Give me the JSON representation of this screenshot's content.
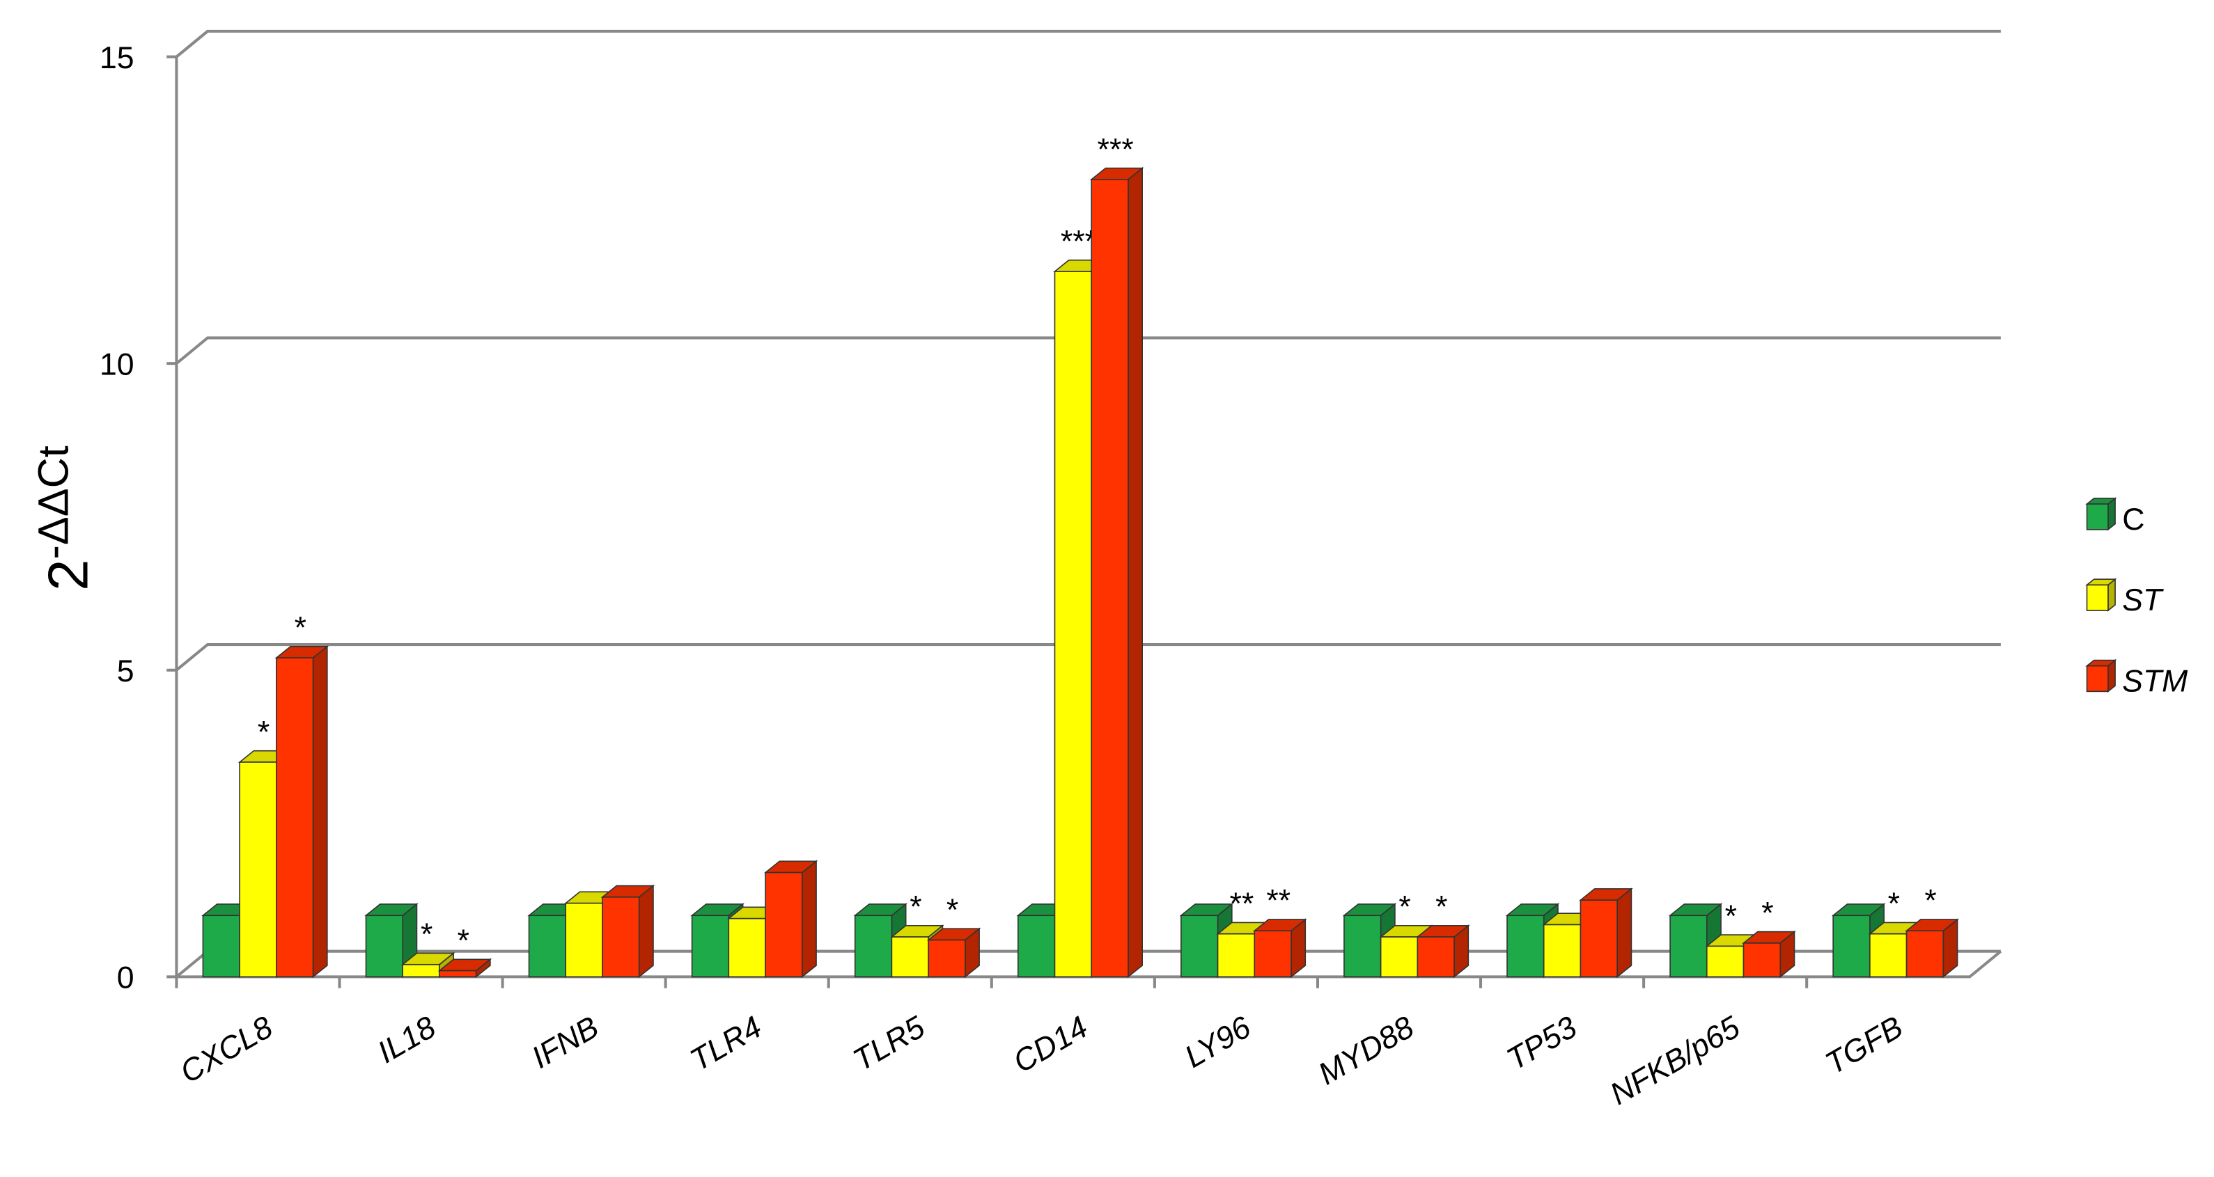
{
  "chart_data": {
    "type": "bar3d",
    "y_label": "2",
    "y_label_sup": "-ΔΔCt",
    "categories": [
      "CXCL8",
      "IL18",
      "IFNB",
      "TLR4",
      "TLR5",
      "CD14",
      "LY96",
      "MYD88",
      "TP53",
      "NFKB/p65",
      "TGFB"
    ],
    "series": [
      {
        "name": "C",
        "color": "#1faa4a",
        "italic": false,
        "values": [
          1,
          1,
          1,
          1,
          1,
          1,
          1,
          1,
          1,
          1,
          1
        ],
        "significance": [
          null,
          null,
          null,
          null,
          null,
          null,
          null,
          null,
          null,
          null,
          null
        ]
      },
      {
        "name": "ST",
        "color": "#ffff00",
        "italic": true,
        "values": [
          3.5,
          0.2,
          1.2,
          0.95,
          0.65,
          11.5,
          0.7,
          0.65,
          0.85,
          0.5,
          0.7
        ],
        "significance": [
          "*",
          "*",
          null,
          null,
          "*",
          "***",
          "**",
          "*",
          null,
          "*",
          "*"
        ]
      },
      {
        "name": "STM",
        "color": "#ff3300",
        "italic": true,
        "values": [
          5.2,
          0.1,
          1.3,
          1.7,
          0.6,
          13,
          0.75,
          0.65,
          1.25,
          0.55,
          0.75
        ],
        "significance": [
          "*",
          "*",
          null,
          null,
          "*",
          "***",
          "**",
          "*",
          null,
          "*",
          "*"
        ]
      }
    ],
    "ylim": [
      0,
      15
    ],
    "yticks": [
      0,
      5,
      10,
      15
    ],
    "grid": true,
    "legend": "right"
  }
}
